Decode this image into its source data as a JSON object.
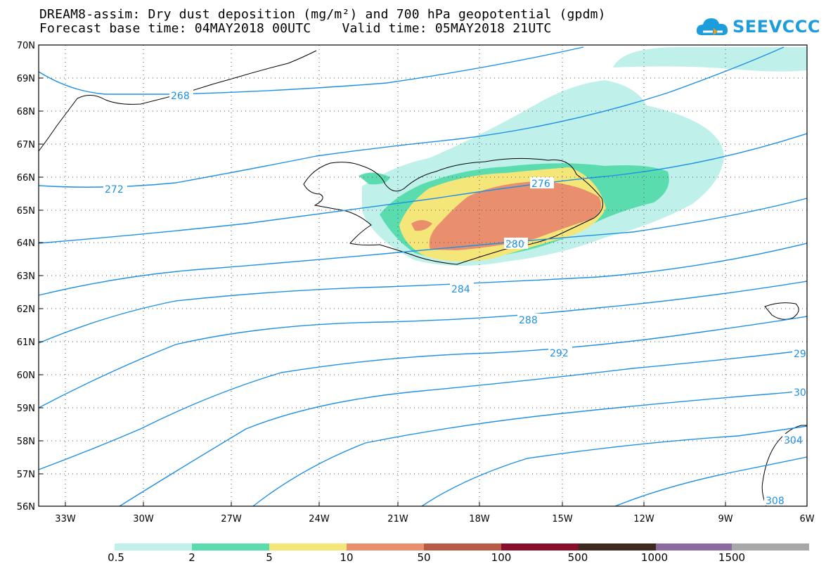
{
  "header": {
    "title_line1": "DREAM8-assim: Dry dust deposition (mg/m²) and 700 hPa geopotential (gpdm)",
    "title_line2": "Forecast base time: 04MAY2018 00UTC    Valid time: 05MAY2018 21UTC"
  },
  "logo": {
    "text": "SEEVCCC",
    "icon": "cloud-icon",
    "color": "#1d9ddc"
  },
  "map": {
    "lat_labels": [
      "70N",
      "69N",
      "68N",
      "67N",
      "66N",
      "65N",
      "64N",
      "63N",
      "62N",
      "61N",
      "60N",
      "59N",
      "58N",
      "57N",
      "56N"
    ],
    "lon_labels": [
      "33W",
      "30W",
      "27W",
      "24W",
      "21W",
      "18W",
      "15W",
      "12W",
      "9W",
      "6W"
    ],
    "contour_color": "#1e90e6",
    "contour_labels": [
      "268",
      "272",
      "276",
      "280",
      "284",
      "288",
      "292",
      "29",
      "30",
      "304",
      "308"
    ]
  },
  "legend": {
    "colors": [
      "#bff0ea",
      "#5bdcaf",
      "#f5e67a",
      "#e98f6d",
      "#b65a45",
      "#870f2c",
      "#3d2a1e",
      "#8c6aa0",
      "#a8a8a8"
    ],
    "labels": [
      "0.5",
      "2",
      "5",
      "10",
      "50",
      "100",
      "500",
      "1000",
      "1500"
    ]
  }
}
